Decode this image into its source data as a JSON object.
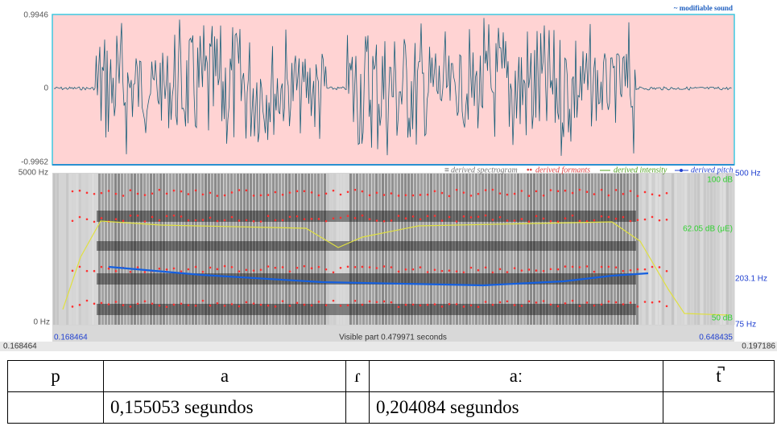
{
  "waveform": {
    "max_label": "0.9946",
    "zero_label": "0",
    "min_label": "-0.9962",
    "caption": "~ modifiable sound"
  },
  "spectrogram": {
    "top_freq": "5000 Hz",
    "bottom_freq": "0 Hz",
    "legend": [
      "derived spectrogram",
      "derived formants",
      "derived intensity",
      "derived pitch"
    ],
    "right_labels": {
      "pitch_top": "500 Hz",
      "intensity_top": "100 dB",
      "intensity_mean": "62.05 dB (μE)",
      "pitch_mean": "203.1 Hz",
      "intensity_bottom": "50 dB",
      "pitch_bottom": "75 Hz"
    }
  },
  "time_bar": {
    "start": "0.168464",
    "visible": "Visible part 0.479971 seconds",
    "end": "0.648435",
    "outer_left": "0.168464",
    "outer_right": "0.197186"
  },
  "table": {
    "rows": [
      [
        "p",
        "a",
        "ɾ",
        "aː",
        "t̚"
      ],
      [
        null,
        "0,155053 segundos",
        null,
        "0,204084 segundos",
        null
      ]
    ]
  }
}
